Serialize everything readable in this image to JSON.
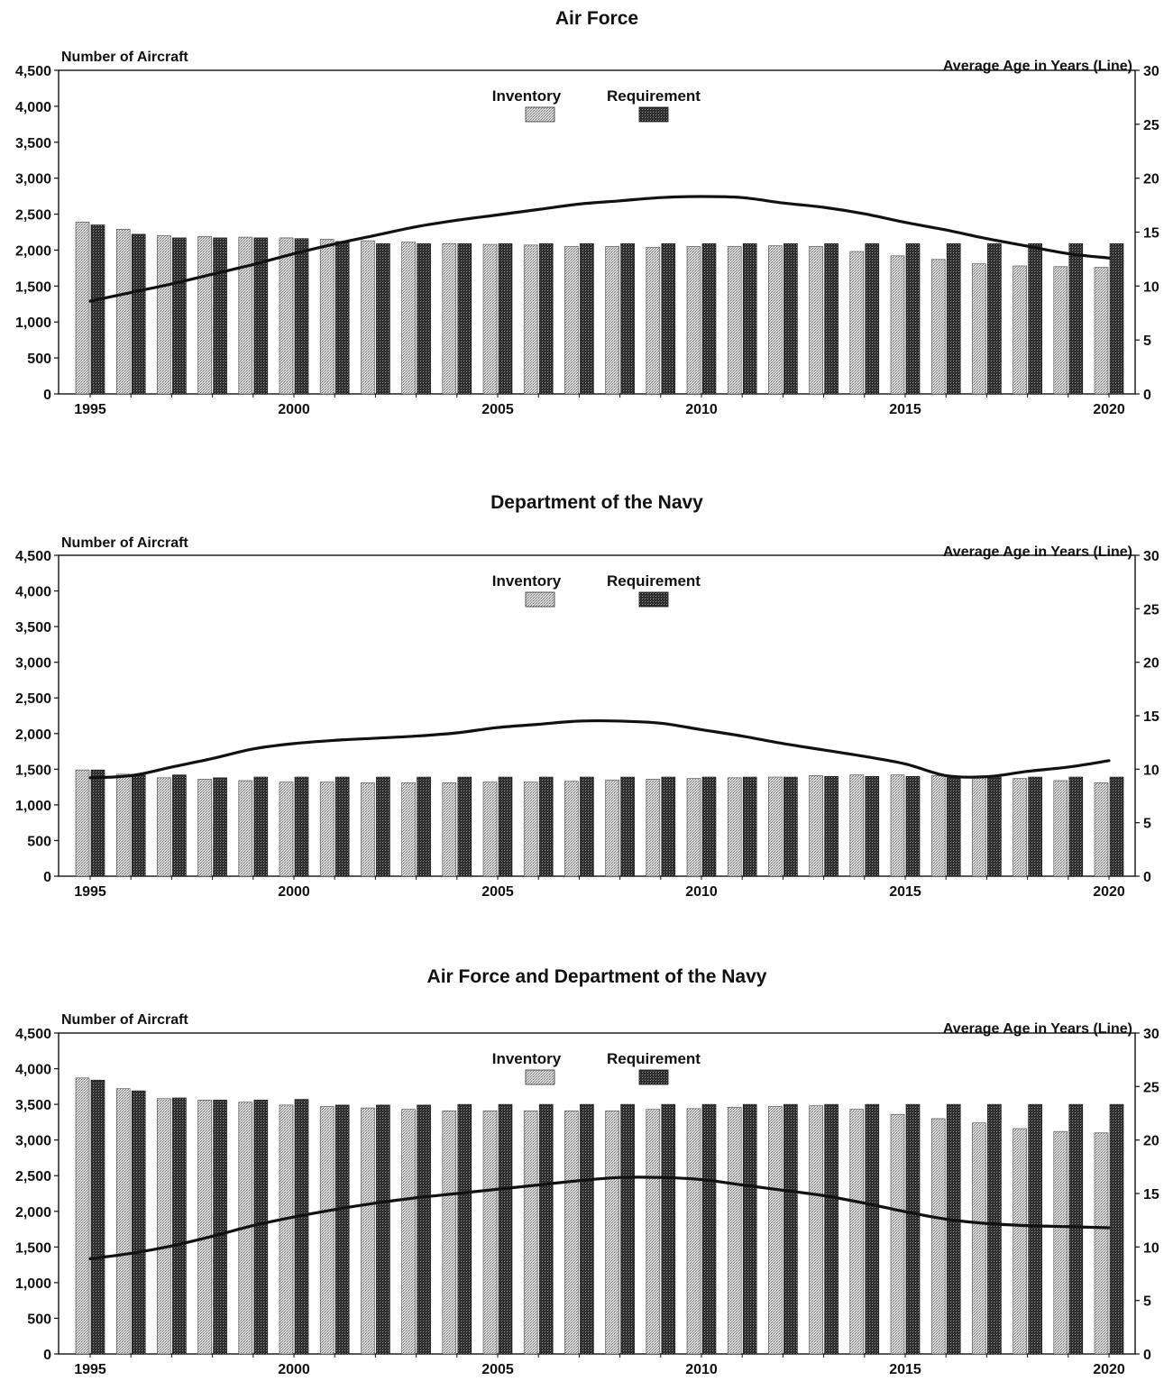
{
  "chart_data": [
    {
      "type": "bar",
      "title": "Air Force",
      "ylabel_left": "Number of Aircraft",
      "ylabel_right": "Average Age in Years (Line)",
      "legend": [
        "Inventory",
        "Requirement"
      ],
      "legend_position": "top-center",
      "x": [
        1995,
        1996,
        1997,
        1998,
        1999,
        2000,
        2001,
        2002,
        2003,
        2004,
        2005,
        2006,
        2007,
        2008,
        2009,
        2010,
        2011,
        2012,
        2013,
        2014,
        2015,
        2016,
        2017,
        2018,
        2019,
        2020
      ],
      "x_tick_labels": [
        "1995",
        "2000",
        "2005",
        "2010",
        "2015",
        "2020"
      ],
      "ylim_left": [
        0,
        4500
      ],
      "y_ticks_left": [
        "0",
        "500",
        "1,000",
        "1,500",
        "2,000",
        "2,500",
        "3,000",
        "3,500",
        "4,000",
        "4,500"
      ],
      "ylim_right": [
        0,
        30
      ],
      "y_ticks_right": [
        "0",
        "5",
        "10",
        "15",
        "20",
        "25",
        "30"
      ],
      "series": [
        {
          "name": "Inventory",
          "kind": "bar",
          "values": [
            2390,
            2290,
            2200,
            2190,
            2180,
            2170,
            2150,
            2130,
            2110,
            2090,
            2080,
            2070,
            2050,
            2050,
            2040,
            2050,
            2050,
            2060,
            2050,
            1980,
            1920,
            1870,
            1810,
            1780,
            1770,
            1760
          ]
        },
        {
          "name": "Requirement",
          "kind": "bar",
          "values": [
            2350,
            2220,
            2170,
            2170,
            2170,
            2160,
            2120,
            2090,
            2090,
            2090,
            2090,
            2090,
            2090,
            2090,
            2090,
            2090,
            2090,
            2090,
            2090,
            2090,
            2090,
            2090,
            2090,
            2090,
            2090,
            2090
          ]
        },
        {
          "name": "Average Age",
          "kind": "line",
          "axis": "right",
          "values": [
            8.6,
            9.4,
            10.2,
            11.1,
            12.0,
            13.0,
            13.9,
            14.7,
            15.5,
            16.1,
            16.6,
            17.1,
            17.6,
            17.9,
            18.2,
            18.3,
            18.2,
            17.7,
            17.3,
            16.7,
            15.9,
            15.2,
            14.4,
            13.7,
            13.0,
            12.6
          ]
        }
      ]
    },
    {
      "type": "bar",
      "title": "Department of the Navy",
      "ylabel_left": "Number of Aircraft",
      "ylabel_right": "Average Age in Years (Line)",
      "legend": [
        "Inventory",
        "Requirement"
      ],
      "legend_position": "top-center",
      "x": [
        1995,
        1996,
        1997,
        1998,
        1999,
        2000,
        2001,
        2002,
        2003,
        2004,
        2005,
        2006,
        2007,
        2008,
        2009,
        2010,
        2011,
        2012,
        2013,
        2014,
        2015,
        2016,
        2017,
        2018,
        2019,
        2020
      ],
      "x_tick_labels": [
        "1995",
        "2000",
        "2005",
        "2010",
        "2015",
        "2020"
      ],
      "ylim_left": [
        0,
        4500
      ],
      "y_ticks_left": [
        "0",
        "500",
        "1,000",
        "1,500",
        "2,000",
        "2,500",
        "3,000",
        "3,500",
        "4,000",
        "4,500"
      ],
      "ylim_right": [
        0,
        30
      ],
      "y_ticks_right": [
        "0",
        "5",
        "10",
        "15",
        "20",
        "25",
        "30"
      ],
      "series": [
        {
          "name": "Inventory",
          "kind": "bar",
          "values": [
            1490,
            1430,
            1380,
            1360,
            1340,
            1320,
            1320,
            1310,
            1310,
            1310,
            1320,
            1320,
            1330,
            1350,
            1360,
            1370,
            1380,
            1390,
            1410,
            1420,
            1420,
            1410,
            1390,
            1370,
            1340,
            1310
          ]
        },
        {
          "name": "Requirement",
          "kind": "bar",
          "values": [
            1490,
            1430,
            1420,
            1380,
            1390,
            1390,
            1390,
            1390,
            1390,
            1390,
            1390,
            1390,
            1390,
            1390,
            1390,
            1390,
            1390,
            1390,
            1400,
            1400,
            1400,
            1400,
            1390,
            1390,
            1390,
            1390
          ]
        },
        {
          "name": "Average Age",
          "kind": "line",
          "axis": "right",
          "values": [
            9.2,
            9.4,
            10.2,
            11.0,
            11.9,
            12.4,
            12.7,
            12.9,
            13.1,
            13.4,
            13.9,
            14.2,
            14.5,
            14.5,
            14.3,
            13.7,
            13.1,
            12.4,
            11.8,
            11.2,
            10.5,
            9.4,
            9.3,
            9.8,
            10.2,
            10.8
          ]
        }
      ]
    },
    {
      "type": "bar",
      "title": "Air Force and Department of the Navy",
      "ylabel_left": "Number of Aircraft",
      "ylabel_right": "Average Age in Years (Line)",
      "legend": [
        "Inventory",
        "Requirement"
      ],
      "legend_position": "top-center",
      "x": [
        1995,
        1996,
        1997,
        1998,
        1999,
        2000,
        2001,
        2002,
        2003,
        2004,
        2005,
        2006,
        2007,
        2008,
        2009,
        2010,
        2011,
        2012,
        2013,
        2014,
        2015,
        2016,
        2017,
        2018,
        2019,
        2020
      ],
      "x_tick_labels": [
        "1995",
        "2000",
        "2005",
        "2010",
        "2015",
        "2020"
      ],
      "ylim_left": [
        0,
        4500
      ],
      "y_ticks_left": [
        "0",
        "500",
        "1,000",
        "1,500",
        "2,000",
        "2,500",
        "3,000",
        "3,500",
        "4,000",
        "4,500"
      ],
      "ylim_right": [
        0,
        30
      ],
      "y_ticks_right": [
        "0",
        "5",
        "10",
        "15",
        "20",
        "25",
        "30"
      ],
      "series": [
        {
          "name": "Inventory",
          "kind": "bar",
          "values": [
            3870,
            3720,
            3580,
            3560,
            3530,
            3490,
            3470,
            3450,
            3430,
            3410,
            3410,
            3410,
            3410,
            3410,
            3430,
            3440,
            3460,
            3470,
            3480,
            3430,
            3360,
            3300,
            3240,
            3160,
            3120,
            3100
          ]
        },
        {
          "name": "Requirement",
          "kind": "bar",
          "values": [
            3840,
            3690,
            3590,
            3560,
            3560,
            3570,
            3490,
            3490,
            3490,
            3500,
            3500,
            3500,
            3500,
            3500,
            3500,
            3500,
            3500,
            3500,
            3500,
            3500,
            3500,
            3500,
            3500,
            3500,
            3500,
            3500
          ]
        },
        {
          "name": "Average Age",
          "kind": "line",
          "axis": "right",
          "values": [
            8.9,
            9.4,
            10.1,
            11.0,
            12.0,
            12.8,
            13.5,
            14.1,
            14.6,
            15.0,
            15.4,
            15.8,
            16.2,
            16.5,
            16.5,
            16.3,
            15.8,
            15.3,
            14.8,
            14.1,
            13.3,
            12.6,
            12.2,
            12.0,
            11.9,
            11.8
          ]
        }
      ]
    }
  ]
}
